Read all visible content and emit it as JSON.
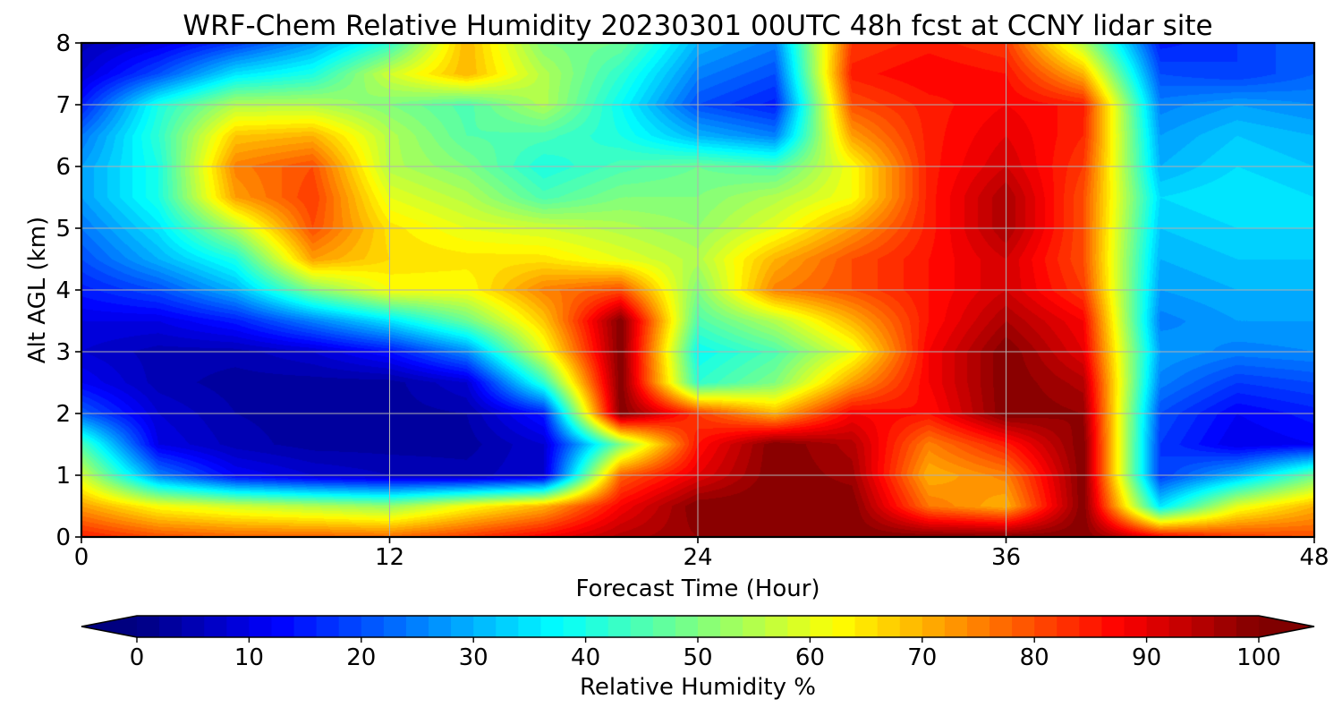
{
  "chart_data": {
    "type": "heatmap",
    "title": "WRF-Chem Relative Humidity 20230301 00UTC 48h fcst at CCNY lidar site",
    "xlabel": "Forecast Time (Hour)",
    "ylabel": "Alt AGL (km)",
    "xlim": [
      0,
      48
    ],
    "ylim": [
      0,
      8
    ],
    "xticks": [
      "0",
      "12",
      "24",
      "36",
      "48"
    ],
    "yticks": [
      "0",
      "1",
      "2",
      "3",
      "4",
      "5",
      "6",
      "7",
      "8"
    ],
    "grid": true,
    "colormap": "jet",
    "colorbar": {
      "label": "Relative Humidity %",
      "ticks": [
        "0",
        "10",
        "20",
        "30",
        "40",
        "50",
        "60",
        "70",
        "80",
        "90",
        "100"
      ],
      "range": [
        0,
        100
      ],
      "extend": "both",
      "orientation": "horizontal"
    },
    "x": [
      0,
      3,
      6,
      9,
      12,
      15,
      18,
      21,
      24,
      27,
      30,
      33,
      36,
      39,
      42,
      45,
      48
    ],
    "y": [
      0,
      0.5,
      1,
      1.5,
      2,
      2.5,
      3,
      3.5,
      4,
      4.5,
      5,
      5.5,
      6,
      6.5,
      7,
      7.5,
      8
    ],
    "z": [
      [
        85,
        80,
        78,
        78,
        77,
        82,
        88,
        95,
        98,
        100,
        100,
        100,
        100,
        100,
        88,
        82,
        80
      ],
      [
        72,
        62,
        58,
        55,
        52,
        62,
        70,
        88,
        100,
        100,
        100,
        76,
        70,
        100,
        35,
        60,
        70
      ],
      [
        58,
        25,
        12,
        8,
        6,
        5,
        8,
        78,
        90,
        100,
        97,
        70,
        75,
        100,
        18,
        30,
        48
      ],
      [
        45,
        10,
        5,
        3,
        3,
        3,
        8,
        50,
        86,
        100,
        95,
        75,
        85,
        100,
        18,
        10,
        12
      ],
      [
        22,
        8,
        4,
        3,
        3,
        4,
        15,
        100,
        82,
        70,
        88,
        86,
        100,
        98,
        20,
        12,
        15
      ],
      [
        12,
        5,
        3,
        3,
        3,
        8,
        42,
        100,
        42,
        50,
        72,
        88,
        100,
        95,
        25,
        18,
        20
      ],
      [
        8,
        5,
        5,
        8,
        14,
        26,
        60,
        100,
        38,
        45,
        60,
        88,
        100,
        90,
        28,
        25,
        26
      ],
      [
        10,
        10,
        15,
        25,
        35,
        48,
        68,
        100,
        45,
        55,
        70,
        86,
        96,
        88,
        25,
        28,
        28
      ],
      [
        15,
        20,
        30,
        50,
        62,
        62,
        75,
        80,
        50,
        75,
        80,
        86,
        92,
        82,
        28,
        30,
        30
      ],
      [
        20,
        30,
        40,
        72,
        66,
        65,
        65,
        60,
        55,
        70,
        80,
        86,
        92,
        80,
        30,
        32,
        32
      ],
      [
        24,
        35,
        55,
        80,
        65,
        60,
        58,
        55,
        52,
        60,
        72,
        85,
        96,
        80,
        32,
        34,
        34
      ],
      [
        28,
        40,
        72,
        82,
        60,
        55,
        45,
        50,
        50,
        55,
        62,
        85,
        96,
        80,
        34,
        36,
        34
      ],
      [
        28,
        40,
        75,
        80,
        55,
        50,
        40,
        45,
        48,
        45,
        62,
        85,
        92,
        82,
        30,
        34,
        32
      ],
      [
        24,
        42,
        68,
        70,
        55,
        46,
        45,
        40,
        30,
        25,
        72,
        85,
        90,
        84,
        28,
        32,
        30
      ],
      [
        15,
        40,
        55,
        55,
        50,
        45,
        55,
        38,
        20,
        15,
        80,
        85,
        88,
        85,
        25,
        28,
        26
      ],
      [
        8,
        20,
        35,
        40,
        58,
        70,
        55,
        42,
        25,
        20,
        85,
        88,
        86,
        70,
        20,
        18,
        22
      ],
      [
        5,
        10,
        18,
        28,
        42,
        70,
        50,
        48,
        30,
        25,
        82,
        85,
        82,
        55,
        15,
        18,
        22
      ]
    ]
  }
}
